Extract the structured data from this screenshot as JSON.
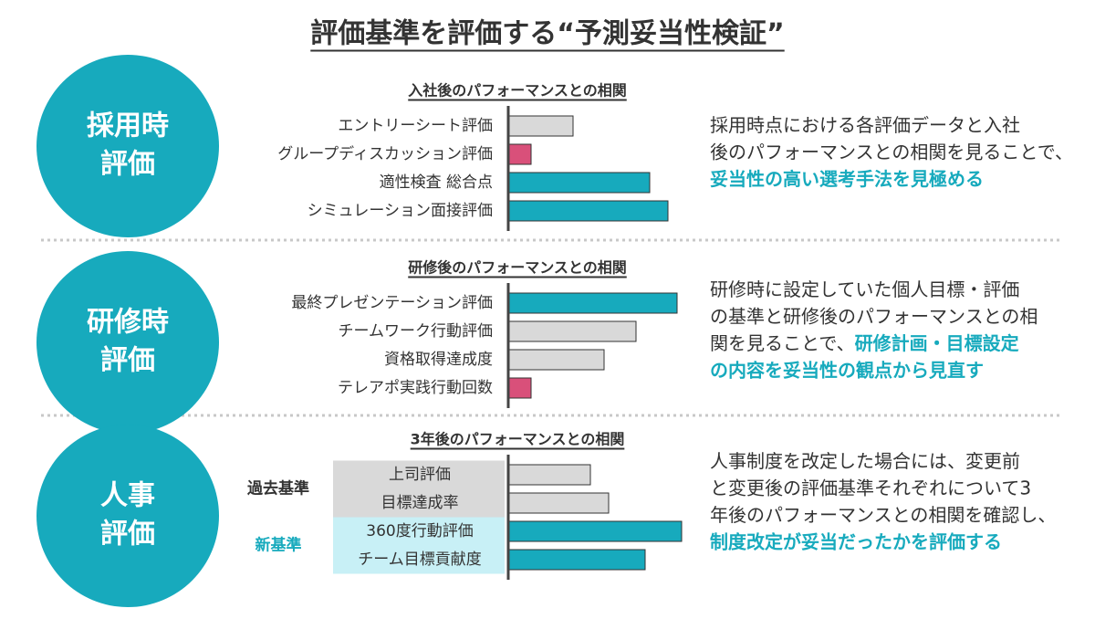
{
  "title": "評価基準を評価する“予測妥当性検証”",
  "accent_color": "#17aabd",
  "sections": [
    {
      "circle": [
        "採用時",
        "評価"
      ],
      "lines": [
        [
          {
            "text": "採用時点における各評価データと入社",
            "emphasis": false
          }
        ],
        [
          {
            "text": "後のパフォーマンスとの相関を見ることで、",
            "emphasis": false
          }
        ],
        [
          {
            "text": "妥当性の高い選考手法を見極める",
            "emphasis": true
          }
        ]
      ]
    },
    {
      "circle": [
        "研修時",
        "評価"
      ],
      "lines": [
        [
          {
            "text": "研修時に設定していた個人目標・評価",
            "emphasis": false
          }
        ],
        [
          {
            "text": "の基準と研修後のパフォーマンスとの相",
            "emphasis": false
          }
        ],
        [
          {
            "text": "関を見ることで、",
            "emphasis": false
          },
          {
            "text": "研修計画・目標設定",
            "emphasis": true
          }
        ],
        [
          {
            "text": "の内容を妥当性の観点から見直す",
            "emphasis": true
          }
        ]
      ]
    },
    {
      "circle": [
        "人事",
        "評価"
      ],
      "lines": [
        [
          {
            "text": "人事制度を改定した場合には、変更前",
            "emphasis": false
          }
        ],
        [
          {
            "text": "と変更後の評価基準それぞれについて3",
            "emphasis": false
          }
        ],
        [
          {
            "text": "年後のパフォーマンスとの相関を確認し、",
            "emphasis": false
          }
        ],
        [
          {
            "text": "制度改定が妥当だったかを評価する",
            "emphasis": true
          }
        ]
      ]
    }
  ],
  "chart_data": [
    {
      "type": "bar",
      "orientation": "horizontal",
      "title": "入社後のパフォーマンスとの相関",
      "categories": [
        "エントリーシート評価",
        "グループディスカッション評価",
        "適性検査 総合点",
        "シミュレーション面接評価"
      ],
      "values": [
        71,
        25,
        155,
        175
      ],
      "colors": [
        "#d9d9d9",
        "#d9507a",
        "#17aabd",
        "#17aabd"
      ],
      "xlim": [
        0,
        200
      ]
    },
    {
      "type": "bar",
      "orientation": "horizontal",
      "title": "研修後のパフォーマンスとの相関",
      "categories": [
        "最終プレゼンテーション評価",
        "チームワーク行動評価",
        "資格取得達成度",
        "テレアポ実践行動回数"
      ],
      "values": [
        185,
        140,
        105,
        25
      ],
      "colors": [
        "#17aabd",
        "#d9d9d9",
        "#d9d9d9",
        "#d9507a"
      ],
      "xlim": [
        0,
        200
      ]
    },
    {
      "type": "bar",
      "orientation": "horizontal",
      "title": "3年後のパフォーマンスとの相関",
      "groups": [
        {
          "name": "過去基準",
          "name_color": "#333333",
          "background": "#d9d9d9",
          "categories": [
            "上司評価",
            "目標達成率"
          ],
          "values": [
            90,
            110
          ],
          "colors": [
            "#d9d9d9",
            "#d9d9d9"
          ]
        },
        {
          "name": "新基準",
          "name_color": "#17aabd",
          "background": "#c8f0f6",
          "categories": [
            "360度行動評価",
            "チーム目標貢献度"
          ],
          "values": [
            190,
            150
          ],
          "colors": [
            "#17aabd",
            "#17aabd"
          ]
        }
      ],
      "xlim": [
        0,
        200
      ]
    }
  ]
}
